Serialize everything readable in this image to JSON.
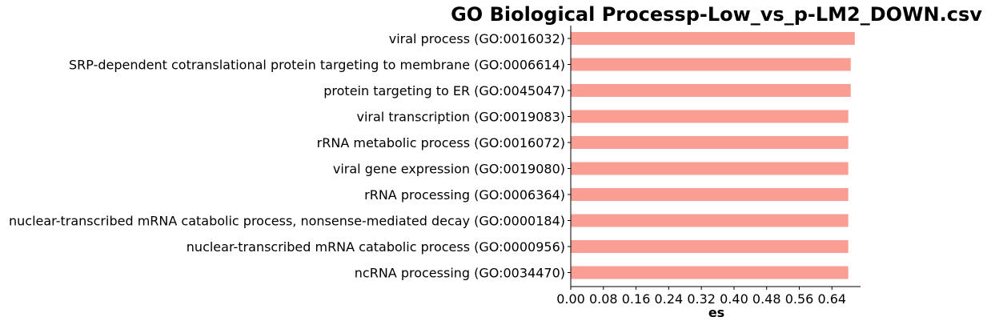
{
  "chart_data": {
    "type": "bar",
    "orientation": "horizontal",
    "title": "GO Biological Processp-Low_vs_p-LM2_DOWN.csv",
    "xlabel": "es",
    "ylabel": "",
    "xlim": [
      0,
      0.71
    ],
    "xticks": [
      "0.00",
      "0.08",
      "0.16",
      "0.24",
      "0.32",
      "0.40",
      "0.48",
      "0.56",
      "0.64"
    ],
    "bar_color": "#fa9e94",
    "categories": [
      "viral process (GO:0016032)",
      "SRP-dependent cotranslational protein targeting to membrane (GO:0006614)",
      "protein targeting to ER (GO:0045047)",
      "viral transcription (GO:0019083)",
      "rRNA metabolic process (GO:0016072)",
      "viral gene expression (GO:0019080)",
      "rRNA processing (GO:0006364)",
      "nuclear-transcribed mRNA catabolic process, nonsense-mediated decay (GO:0000184)",
      "nuclear-transcribed mRNA catabolic process (GO:0000956)",
      "ncRNA processing (GO:0034470)"
    ],
    "values": [
      0.696,
      0.686,
      0.686,
      0.68,
      0.68,
      0.68,
      0.68,
      0.68,
      0.68,
      0.68
    ]
  }
}
